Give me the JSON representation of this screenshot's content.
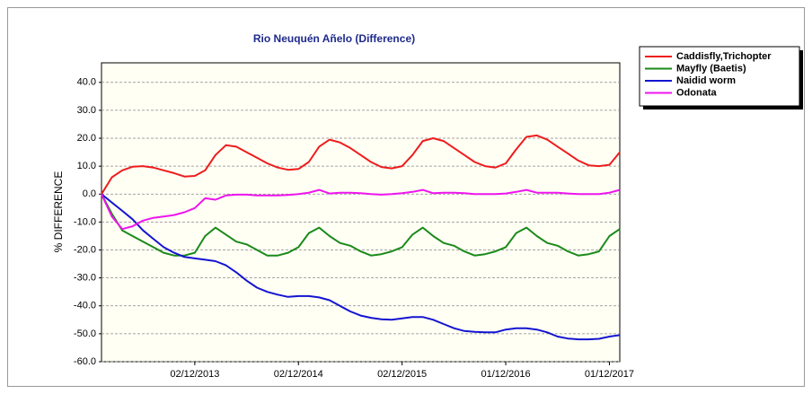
{
  "chart_data": {
    "type": "line",
    "title": "Rio Neuquén Añelo (Difference)",
    "y_label": "% DIFFERENCE",
    "categories": [
      null,
      null,
      null,
      null,
      null,
      null,
      null,
      null,
      null,
      "02/12/2013",
      null,
      null,
      null,
      null,
      null,
      null,
      null,
      null,
      null,
      "02/12/2014",
      null,
      null,
      null,
      null,
      null,
      null,
      null,
      null,
      null,
      "02/12/2015",
      null,
      null,
      null,
      null,
      null,
      null,
      null,
      null,
      null,
      "01/12/2016",
      null,
      null,
      null,
      null,
      null,
      null,
      null,
      null,
      null,
      "01/12/2017",
      null
    ],
    "ylim": [
      -60,
      47
    ],
    "yticks": [
      {
        "value": -60,
        "label": "-60.0"
      },
      {
        "value": -50,
        "label": "-50.0"
      },
      {
        "value": -40,
        "label": "-40.0"
      },
      {
        "value": -30,
        "label": "-30.0"
      },
      {
        "value": -20,
        "label": "-20.0"
      },
      {
        "value": -10,
        "label": "-10.0"
      },
      {
        "value": 0,
        "label": "0.0"
      },
      {
        "value": 10,
        "label": "10.0"
      },
      {
        "value": 20,
        "label": "20.0"
      },
      {
        "value": 30,
        "label": "30.0"
      },
      {
        "value": 40,
        "label": "40.0"
      }
    ],
    "grid": true,
    "legend": "upper right",
    "series": [
      {
        "name": "Caddisfly,Trichopter",
        "color": "#ee1c1c",
        "values": [
          0,
          6,
          8.5,
          9.8,
          10,
          9.5,
          8.5,
          7.5,
          6.3,
          6.5,
          8.5,
          14,
          17.5,
          17,
          15,
          13,
          11,
          9.5,
          8.7,
          9,
          11.5,
          17,
          19.5,
          18.5,
          16.5,
          14,
          11.5,
          9.7,
          9.2,
          10,
          14,
          19,
          20,
          19,
          16.5,
          14,
          11.5,
          10,
          9.5,
          11,
          16,
          20.5,
          21,
          19.5,
          17,
          14.5,
          12,
          10.3,
          10,
          10.5,
          15
        ]
      },
      {
        "name": "Mayfly (Baetis)",
        "color": "#1a8a1a",
        "values": [
          0,
          -7,
          -13,
          -15,
          -17,
          -19,
          -21,
          -22,
          -22,
          -21,
          -15,
          -12,
          -14.5,
          -17,
          -18,
          -20,
          -22,
          -22,
          -21,
          -19,
          -14,
          -12,
          -15,
          -17.5,
          -18.5,
          -20.5,
          -22,
          -21.5,
          -20.5,
          -19,
          -14.5,
          -12,
          -15,
          -17.5,
          -18.5,
          -20.5,
          -22,
          -21.5,
          -20.5,
          -19,
          -14,
          -12,
          -15,
          -17.5,
          -18.5,
          -20.5,
          -22,
          -21.5,
          -20.5,
          -15,
          -12.5
        ]
      },
      {
        "name": "Naidid worm",
        "color": "#1414d2",
        "values": [
          0,
          -3,
          -6,
          -9,
          -13,
          -16,
          -19,
          -21,
          -22.5,
          -23,
          -23.5,
          -24,
          -25.5,
          -28,
          -31,
          -33.5,
          -35,
          -36,
          -36.8,
          -36.5,
          -36.5,
          -37,
          -38,
          -40,
          -42,
          -43.5,
          -44.3,
          -44.8,
          -45,
          -44.5,
          -44,
          -44,
          -45,
          -46.5,
          -48,
          -49,
          -49.3,
          -49.5,
          -49.5,
          -48.5,
          -48,
          -48,
          -48.5,
          -49.5,
          -51,
          -51.7,
          -52,
          -52,
          -51.8,
          -51,
          -50.5
        ]
      },
      {
        "name": "Odonata",
        "color": "#ee14ee",
        "values": [
          0,
          -8,
          -12.5,
          -11.5,
          -9.5,
          -8.5,
          -8,
          -7.5,
          -6.5,
          -5,
          -1.5,
          -2,
          -0.5,
          -0.2,
          -0.2,
          -0.5,
          -0.5,
          -0.5,
          -0.3,
          0,
          0.5,
          1.5,
          0.2,
          0.5,
          0.5,
          0.3,
          0,
          -0.2,
          0,
          0.3,
          0.8,
          1.5,
          0.3,
          0.5,
          0.5,
          0.3,
          0,
          0,
          0,
          0.2,
          0.8,
          1.5,
          0.5,
          0.5,
          0.5,
          0.2,
          0,
          0,
          0,
          0.5,
          1.5
        ]
      }
    ]
  }
}
